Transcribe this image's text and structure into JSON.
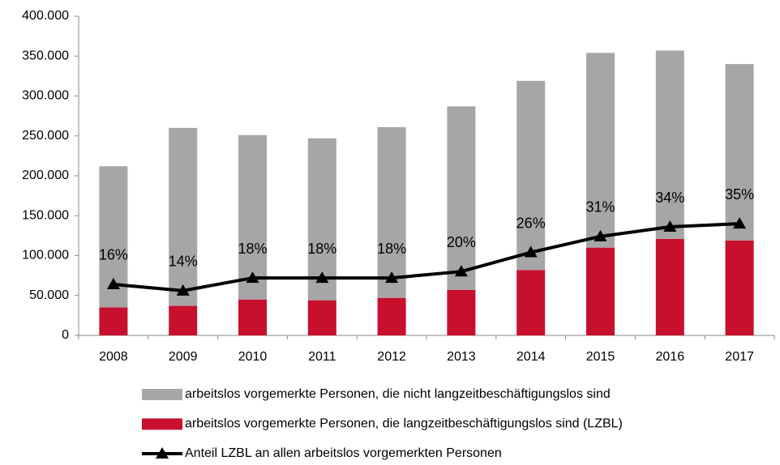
{
  "chart_data": {
    "type": "bar",
    "categories": [
      "2008",
      "2009",
      "2010",
      "2011",
      "2012",
      "2013",
      "2014",
      "2015",
      "2016",
      "2017"
    ],
    "stacked": true,
    "series": [
      {
        "name": "arbeitslos vorgemerkte Personen, die nicht langzeitbeschäftigungslos sind",
        "color": "#a6a6a6",
        "values": [
          177000,
          223000,
          206000,
          203000,
          214000,
          230000,
          237000,
          244000,
          236000,
          221000
        ]
      },
      {
        "name": "arbeitslos vorgemerkte Personen, die langzeitbeschäftigungslos sind (LZBL)",
        "color": "#c8102e",
        "values": [
          35000,
          37000,
          45000,
          44000,
          47000,
          57000,
          82000,
          110000,
          121000,
          119000
        ]
      },
      {
        "name": "Anteil LZBL an allen arbeitslos vorgemerkten Personen",
        "color": "#000000",
        "type": "line",
        "axis": "y2",
        "marker": "triangle",
        "values": [
          16,
          14,
          18,
          18,
          18,
          20,
          26,
          31,
          34,
          35
        ],
        "value_labels": [
          "16%",
          "14%",
          "18%",
          "18%",
          "18%",
          "20%",
          "26%",
          "31%",
          "34%",
          "35%"
        ]
      }
    ],
    "ylim": [
      0,
      400000
    ],
    "yticks": [
      0,
      {
        "value": 50000,
        "label": "50.000"
      },
      {
        "value": 100000,
        "label": "100.000"
      },
      {
        "value": 150000,
        "label": "150.000"
      },
      {
        "value": 200000,
        "label": "200.000"
      },
      {
        "value": 250000,
        "label": "250.000"
      },
      {
        "value": 300000,
        "label": "300.000"
      },
      {
        "value": 350000,
        "label": "350.000"
      },
      {
        "value": 400000,
        "label": "400.000"
      }
    ],
    "y2lim": [
      0,
      100
    ],
    "legend": "bottom"
  }
}
